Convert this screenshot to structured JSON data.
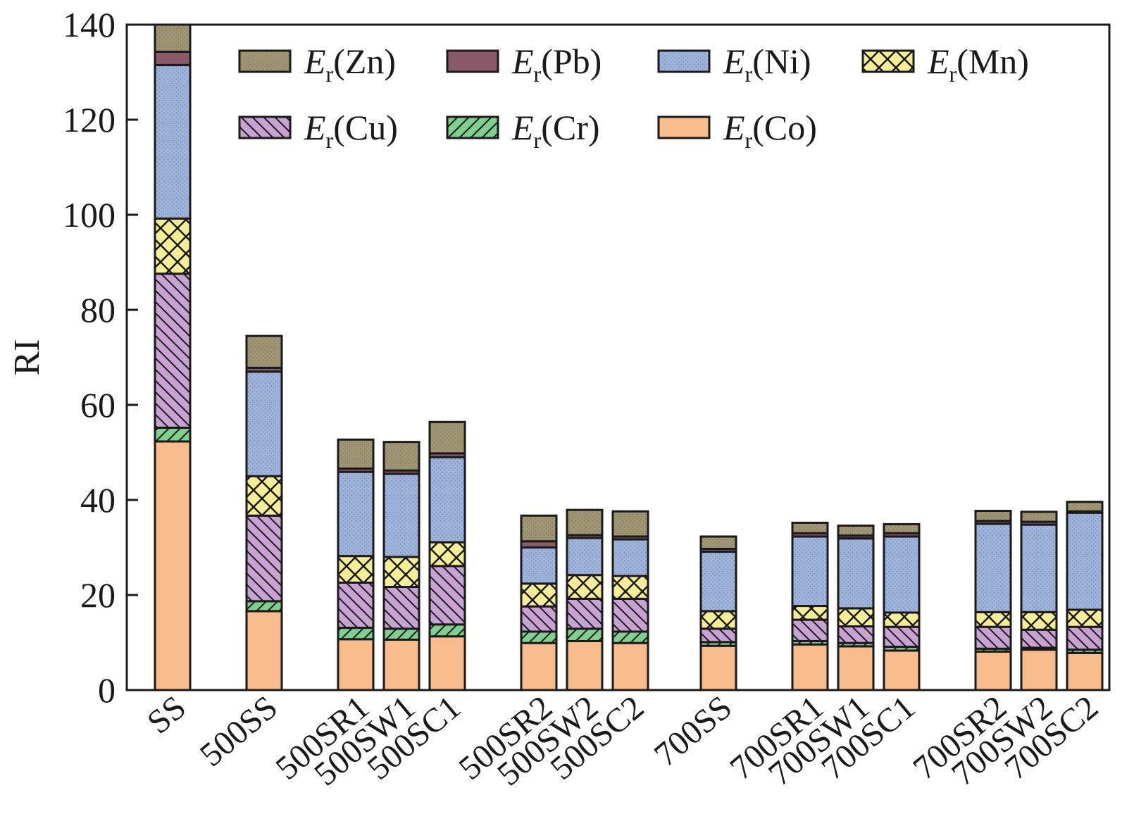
{
  "chart_data": {
    "type": "bar",
    "stacked": true,
    "ylabel": "RI",
    "xlabel": "",
    "ylim": [
      0,
      140
    ],
    "yticks": [
      0,
      20,
      40,
      60,
      80,
      100,
      120,
      140
    ],
    "grid": false,
    "legend_position": "top-right",
    "categories": [
      "SS",
      "500SS",
      "500SR1",
      "500SW1",
      "500SC1",
      "500SR2",
      "500SW2",
      "500SC2",
      "700SS",
      "700SR1",
      "700SW1",
      "700SC1",
      "700SR2",
      "700SW2",
      "700SC2"
    ],
    "series": [
      {
        "key": "Co",
        "name": "Er(Co)",
        "name_base": "E",
        "name_sub": "r",
        "name_element": "(Co)",
        "color": "#f8bb8c",
        "pattern": "none",
        "values": [
          52.3,
          16.6,
          10.7,
          10.6,
          11.3,
          9.9,
          10.3,
          9.9,
          9.3,
          9.6,
          9.2,
          8.3,
          8.1,
          8.5,
          7.8
        ]
      },
      {
        "key": "Cr",
        "name": "Er(Cr)",
        "name_base": "E",
        "name_sub": "r",
        "name_element": "(Cr)",
        "color": "#7fcf8f",
        "pattern": "diag-up",
        "values": [
          2.9,
          2.1,
          2.4,
          2.3,
          2.5,
          2.4,
          2.6,
          2.4,
          0.8,
          0.7,
          0.7,
          0.8,
          0.6,
          0.4,
          0.7
        ]
      },
      {
        "key": "Cu",
        "name": "Er(Cu)",
        "name_base": "E",
        "name_sub": "r",
        "name_element": "(Cu)",
        "color": "#c7a2d3",
        "pattern": "diag-down",
        "values": [
          32.4,
          18.0,
          9.5,
          8.8,
          12.3,
          5.3,
          6.3,
          6.9,
          2.8,
          4.5,
          3.5,
          4.2,
          4.6,
          3.8,
          4.8
        ]
      },
      {
        "key": "Mn",
        "name": "Er(Mn)",
        "name_base": "E",
        "name_sub": "r",
        "name_element": "(Mn)",
        "color": "#f5ec98",
        "pattern": "cross",
        "values": [
          11.6,
          8.3,
          5.6,
          6.3,
          5.0,
          4.8,
          5.0,
          4.8,
          3.7,
          2.9,
          3.8,
          3.0,
          3.1,
          3.7,
          3.6
        ]
      },
      {
        "key": "Ni",
        "name": "Er(Ni)",
        "name_base": "E",
        "name_sub": "r",
        "name_element": "(Ni)",
        "color": "#9fb4dc",
        "pattern": "dots",
        "values": [
          32.3,
          22.0,
          17.7,
          17.5,
          17.9,
          7.6,
          7.8,
          7.7,
          12.5,
          14.6,
          14.7,
          16.0,
          18.6,
          18.4,
          20.4
        ]
      },
      {
        "key": "Pb",
        "name": "Er(Pb)",
        "name_base": "E",
        "name_sub": "r",
        "name_element": "(Pb)",
        "color": "#8a5a6a",
        "pattern": "none",
        "values": [
          2.8,
          0.8,
          0.7,
          0.7,
          0.8,
          1.3,
          0.6,
          0.6,
          0.6,
          0.7,
          0.6,
          0.7,
          0.6,
          0.6,
          0.3
        ]
      },
      {
        "key": "Zn",
        "name": "Er(Zn)",
        "name_base": "E",
        "name_sub": "r",
        "name_element": "(Zn)",
        "color": "#a09674",
        "pattern": "dots",
        "values": [
          5.7,
          6.7,
          6.1,
          6.0,
          6.6,
          5.4,
          5.3,
          5.3,
          2.6,
          2.2,
          2.1,
          1.9,
          2.1,
          2.1,
          2.0
        ]
      }
    ],
    "legend_order": [
      "Zn",
      "Pb",
      "Ni",
      "Mn",
      "Cu",
      "Cr",
      "Co"
    ]
  }
}
